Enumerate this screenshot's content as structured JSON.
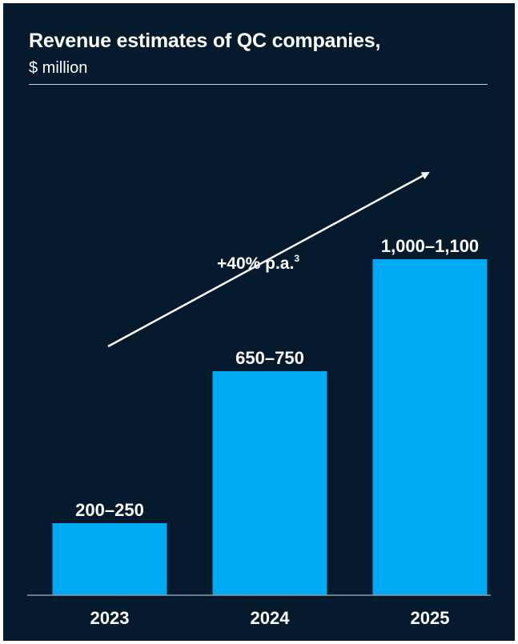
{
  "title": "Revenue estimates of QC companies,",
  "subtitle": "$ million",
  "colors": {
    "background": "#061a2e",
    "bar": "#00a9f4",
    "text": "#ffffff",
    "axis": "#8e99a8"
  },
  "chart_data": {
    "type": "bar",
    "categories": [
      "2023",
      "2024",
      "2025"
    ],
    "values": [
      225,
      700,
      1050
    ],
    "value_labels": [
      "200–250",
      "650–750",
      "1,000–1,100"
    ],
    "ranges": [
      [
        200,
        250
      ],
      [
        650,
        750
      ],
      [
        1000,
        1100
      ]
    ],
    "title": "Revenue estimates of QC companies,",
    "subtitle": "$ million",
    "xlabel": "",
    "ylabel": "",
    "ylim": [
      0,
      1100
    ],
    "grid": false,
    "annotation": {
      "text": "+40% p.a.",
      "superscript": "3"
    }
  }
}
